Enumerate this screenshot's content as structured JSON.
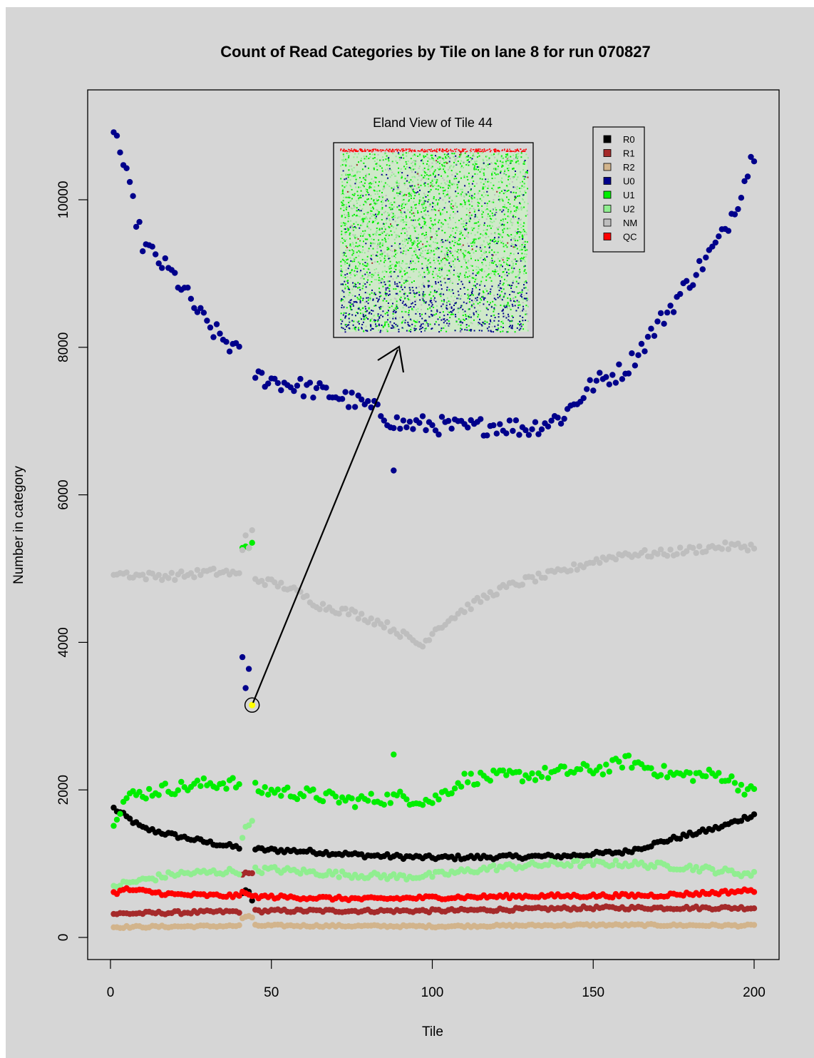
{
  "chart_data": {
    "type": "scatter",
    "title": "Count of Read Categories by Tile on lane 8 for run 070827",
    "xlabel": "Tile",
    "ylabel": "Number in category",
    "xlim": [
      0,
      200
    ],
    "ylim": [
      0,
      11000
    ],
    "x_ticks": [
      "0",
      "50",
      "100",
      "150",
      "200"
    ],
    "y_ticks": [
      "0",
      "2000",
      "4000",
      "6000",
      "8000",
      "10000"
    ],
    "x_tick_values": [
      0,
      50,
      100,
      150,
      200
    ],
    "y_tick_values": [
      0,
      2000,
      4000,
      6000,
      8000,
      10000
    ],
    "grid": false,
    "legend_position": "top-right",
    "series": [
      {
        "name": "R0",
        "color": "#000000",
        "anchors": [
          [
            1,
            1750
          ],
          [
            10,
            1480
          ],
          [
            20,
            1380
          ],
          [
            30,
            1290
          ],
          [
            38,
            1230
          ],
          [
            46,
            1190
          ],
          [
            60,
            1170
          ],
          [
            80,
            1110
          ],
          [
            100,
            1080
          ],
          [
            120,
            1090
          ],
          [
            140,
            1100
          ],
          [
            160,
            1160
          ],
          [
            175,
            1340
          ],
          [
            190,
            1500
          ],
          [
            200,
            1670
          ]
        ],
        "outliers": [
          [
            41,
            600
          ],
          [
            42,
            640
          ],
          [
            43,
            620
          ],
          [
            44,
            500
          ]
        ],
        "gap": [
          41,
          44
        ],
        "jitter": 30
      },
      {
        "name": "R1",
        "color": "#a52a2a",
        "anchors": [
          [
            1,
            320
          ],
          [
            50,
            360
          ],
          [
            100,
            360
          ],
          [
            150,
            400
          ],
          [
            200,
            400
          ]
        ],
        "outliers": [
          [
            41,
            850
          ],
          [
            42,
            880
          ],
          [
            43,
            870
          ],
          [
            44,
            870
          ]
        ],
        "gap": [
          41,
          44
        ],
        "jitter": 22
      },
      {
        "name": "R2",
        "color": "#d2b48c",
        "anchors": [
          [
            1,
            140
          ],
          [
            50,
            160
          ],
          [
            100,
            150
          ],
          [
            150,
            170
          ],
          [
            200,
            160
          ]
        ],
        "outliers": [
          [
            41,
            260
          ],
          [
            42,
            280
          ],
          [
            43,
            290
          ],
          [
            44,
            270
          ]
        ],
        "gap": [
          41,
          44
        ],
        "jitter": 15
      },
      {
        "name": "U0",
        "color": "#00008b",
        "anchors": [
          [
            1,
            11000
          ],
          [
            5,
            10300
          ],
          [
            10,
            9400
          ],
          [
            20,
            8950
          ],
          [
            30,
            8300
          ],
          [
            38,
            8000
          ],
          [
            46,
            7600
          ],
          [
            60,
            7450
          ],
          [
            70,
            7350
          ],
          [
            80,
            7200
          ],
          [
            90,
            6950
          ],
          [
            100,
            6950
          ],
          [
            110,
            6900
          ],
          [
            120,
            6950
          ],
          [
            130,
            6900
          ],
          [
            140,
            7050
          ],
          [
            150,
            7500
          ],
          [
            160,
            7700
          ],
          [
            170,
            8300
          ],
          [
            180,
            8900
          ],
          [
            190,
            9500
          ],
          [
            195,
            10000
          ],
          [
            200,
            10650
          ]
        ],
        "outliers": [
          [
            41,
            3800
          ],
          [
            42,
            3380
          ],
          [
            43,
            3640
          ],
          [
            88,
            6330
          ]
        ],
        "gap": [
          41,
          44
        ],
        "jitter": 130
      },
      {
        "name": "U1",
        "color": "#00ee00",
        "anchors": [
          [
            1,
            1600
          ],
          [
            5,
            1900
          ],
          [
            15,
            2000
          ],
          [
            30,
            2080
          ],
          [
            37,
            2100
          ],
          [
            46,
            2000
          ],
          [
            60,
            1950
          ],
          [
            75,
            1850
          ],
          [
            90,
            1900
          ],
          [
            100,
            1850
          ],
          [
            110,
            2150
          ],
          [
            130,
            2200
          ],
          [
            155,
            2300
          ],
          [
            160,
            2400
          ],
          [
            175,
            2200
          ],
          [
            190,
            2200
          ],
          [
            200,
            1950
          ]
        ],
        "outliers": [
          [
            41,
            5280
          ],
          [
            42,
            5300
          ],
          [
            43,
            5280
          ],
          [
            44,
            5350
          ],
          [
            88,
            2480
          ]
        ],
        "gap": [
          41,
          44
        ],
        "jitter": 90
      },
      {
        "name": "U2",
        "color": "#90ee90",
        "anchors": [
          [
            1,
            700
          ],
          [
            20,
            860
          ],
          [
            40,
            900
          ],
          [
            50,
            920
          ],
          [
            70,
            860
          ],
          [
            90,
            820
          ],
          [
            100,
            840
          ],
          [
            120,
            950
          ],
          [
            140,
            1000
          ],
          [
            160,
            1000
          ],
          [
            180,
            950
          ],
          [
            200,
            850
          ]
        ],
        "outliers": [
          [
            41,
            1350
          ],
          [
            42,
            1500
          ],
          [
            43,
            1520
          ],
          [
            44,
            1580
          ]
        ],
        "gap": [
          41,
          44
        ],
        "jitter": 45
      },
      {
        "name": "NM",
        "color": "#bebebe",
        "anchors": [
          [
            1,
            4950
          ],
          [
            10,
            4900
          ],
          [
            20,
            4900
          ],
          [
            30,
            4950
          ],
          [
            36,
            4950
          ],
          [
            46,
            4850
          ],
          [
            55,
            4750
          ],
          [
            65,
            4500
          ],
          [
            75,
            4400
          ],
          [
            85,
            4250
          ],
          [
            93,
            4050
          ],
          [
            97,
            3950
          ],
          [
            100,
            4150
          ],
          [
            110,
            4450
          ],
          [
            120,
            4700
          ],
          [
            130,
            4850
          ],
          [
            140,
            4950
          ],
          [
            150,
            5100
          ],
          [
            160,
            5200
          ],
          [
            170,
            5200
          ],
          [
            180,
            5250
          ],
          [
            190,
            5300
          ],
          [
            200,
            5300
          ]
        ],
        "outliers": [
          [
            41,
            5250
          ],
          [
            42,
            5450
          ],
          [
            43,
            5280
          ],
          [
            44,
            5520
          ]
        ],
        "gap": [
          41,
          44
        ],
        "jitter": 55
      },
      {
        "name": "QC",
        "color": "#ff0000",
        "anchors": [
          [
            1,
            600
          ],
          [
            5,
            650
          ],
          [
            20,
            580
          ],
          [
            50,
            550
          ],
          [
            80,
            520
          ],
          [
            100,
            540
          ],
          [
            130,
            560
          ],
          [
            170,
            570
          ],
          [
            190,
            610
          ],
          [
            200,
            640
          ]
        ],
        "outliers": [
          [
            41,
            620
          ],
          [
            42,
            600
          ],
          [
            43,
            580
          ],
          [
            44,
            560
          ]
        ],
        "gap": [
          41,
          44
        ],
        "jitter": 25
      }
    ],
    "highlight": {
      "x": 44,
      "y": 3150,
      "color": "#ffff00"
    },
    "inset": {
      "title": "Eland View of Tile 44",
      "colors": {
        "U0": "#00008b",
        "U1": "#00ee00",
        "U2": "#90ee90",
        "NM": "#bebebe",
        "QC": "#ff0000",
        "R1": "#a52a2a"
      }
    }
  }
}
